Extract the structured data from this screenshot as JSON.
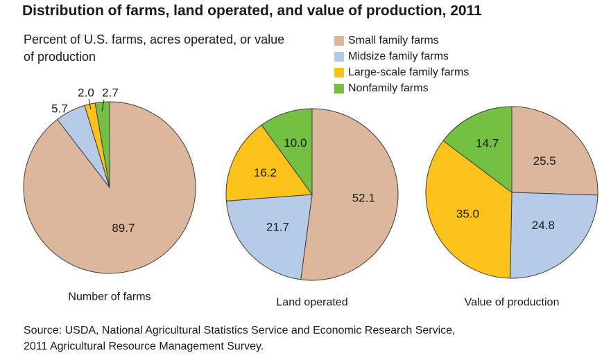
{
  "title": "Distribution of farms, land operated, and value of production, 2011",
  "subtitle": "Percent of U.S. farms, acres operated, or value of production",
  "source": {
    "line1": "Source: USDA, National Agricultural Statistics Service and Economic Research Service,",
    "line2": "2011 Agricultural Resource Management Survey."
  },
  "chart_data": {
    "type": "pie",
    "series_names": [
      "Small family farms",
      "Midsize family farms",
      "Large-scale family farms",
      "Nonfamily farms"
    ],
    "colors": [
      "#dcb79c",
      "#b6cbe8",
      "#fcc21b",
      "#74c043"
    ],
    "charts": [
      {
        "label": "Number of farms",
        "values": [
          89.7,
          5.7,
          2.0,
          2.7
        ],
        "value_labels": [
          "89.7",
          "5.7",
          "2.0",
          "2.7"
        ]
      },
      {
        "label": "Land operated",
        "values": [
          52.1,
          21.7,
          16.2,
          10.0
        ],
        "value_labels": [
          "52.1",
          "21.7",
          "16.2",
          "10.0"
        ]
      },
      {
        "label": "Value of production",
        "values": [
          25.5,
          24.8,
          35.0,
          14.7
        ],
        "value_labels": [
          "25.5",
          "24.8",
          "35.0",
          "14.7"
        ]
      }
    ]
  }
}
